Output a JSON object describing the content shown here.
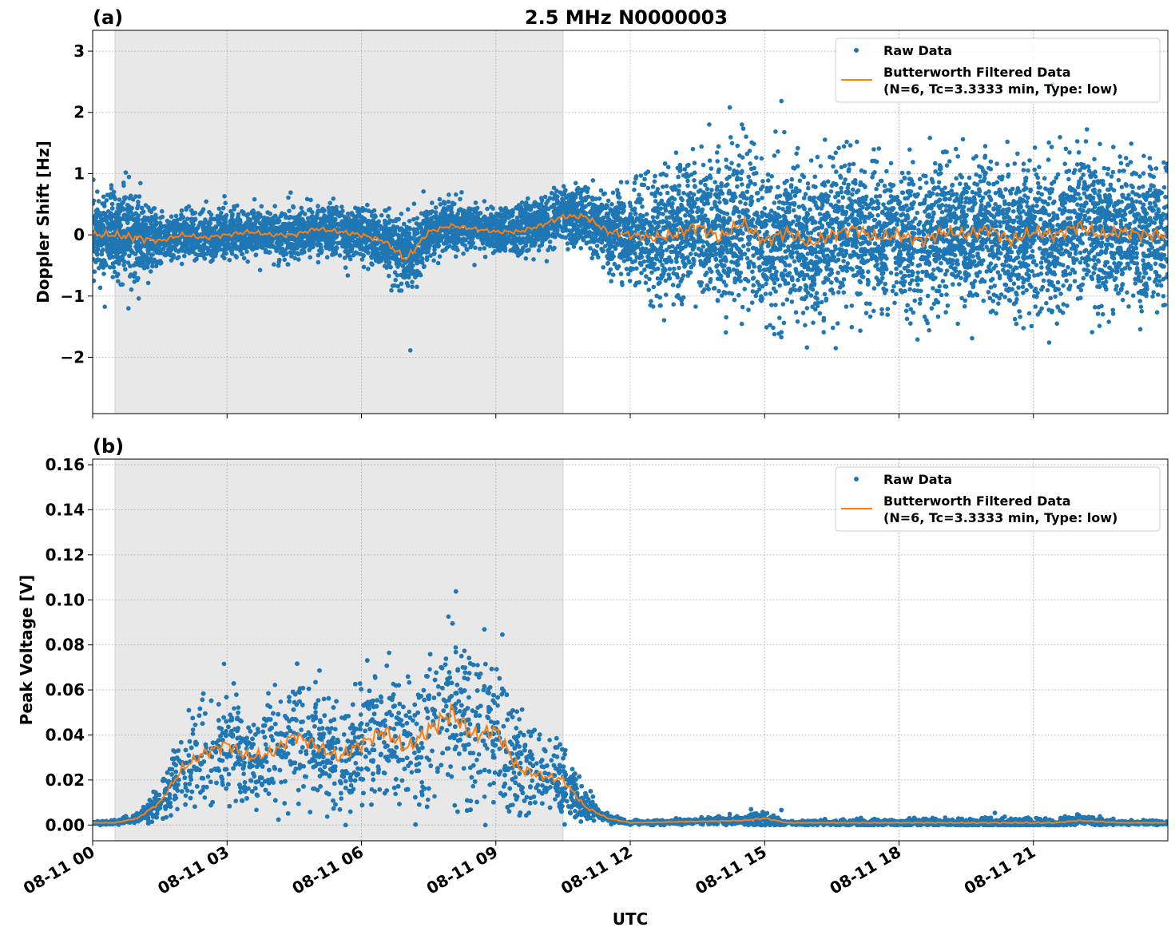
{
  "chart_data": [
    {
      "type": "scatter+line",
      "panel_label": "(a)",
      "title": "2.5 MHz N0000003",
      "xlabel": "",
      "ylabel": "Doppler Shift [Hz]",
      "xlim_hours": [
        0,
        24
      ],
      "ylim": [
        -2.92,
        3.34
      ],
      "yticks": [
        -2,
        -1,
        0,
        1,
        2,
        3
      ],
      "ytick_labels": [
        "−2",
        "−1",
        "0",
        "1",
        "2",
        "3"
      ],
      "grid": true,
      "legend_position": "top-right",
      "shaded_interval_hours": [
        0.5,
        10.5
      ],
      "series": [
        {
          "name": "Raw Data",
          "kind": "scatter",
          "color": "#1f77b4",
          "x_hours": [
            0,
            1,
            1.5,
            3,
            5,
            6.5,
            7,
            7.5,
            9,
            10.5,
            11.5,
            12.5,
            13,
            15,
            18,
            21,
            24
          ],
          "spread_hz": [
            0.6,
            0.65,
            0.35,
            0.35,
            0.35,
            0.4,
            0.65,
            0.35,
            0.3,
            0.4,
            0.5,
            0.8,
            1.0,
            1.05,
            1.0,
            1.05,
            1.0
          ]
        },
        {
          "name": "Butterworth Filtered Data\n(N=6, Tc=3.3333 min, Type: low)",
          "kind": "line",
          "color": "#ff7f0e",
          "x_hours": [
            0,
            0.5,
            1,
            1.5,
            2,
            2.5,
            3,
            3.5,
            4,
            4.5,
            5,
            5.5,
            6,
            6.5,
            7,
            7.5,
            8,
            8.5,
            9,
            9.5,
            10,
            10.5,
            11,
            11.5,
            12,
            12.5,
            13,
            13.5,
            14,
            14.5,
            15,
            15.5,
            16,
            16.5,
            17,
            17.5,
            18,
            18.5,
            19,
            19.5,
            20,
            20.5,
            21,
            21.5,
            22,
            22.5,
            23,
            23.5,
            24
          ],
          "y": [
            0.0,
            0.0,
            -0.05,
            -0.1,
            0.0,
            -0.05,
            0.0,
            0.05,
            0.0,
            0.0,
            0.1,
            0.05,
            0.0,
            -0.1,
            -0.4,
            0.05,
            0.15,
            0.1,
            0.05,
            0.05,
            0.15,
            0.3,
            0.3,
            0.05,
            0.0,
            -0.05,
            0.0,
            0.15,
            -0.05,
            0.2,
            -0.1,
            0.05,
            -0.15,
            0.0,
            0.1,
            -0.05,
            0.0,
            -0.1,
            0.05,
            0.0,
            0.1,
            -0.1,
            0.05,
            0.0,
            0.15,
            0.0,
            0.05,
            0.0,
            0.0
          ]
        }
      ]
    },
    {
      "type": "scatter+line",
      "panel_label": "(b)",
      "xlabel": "UTC",
      "ylabel": "Peak Voltage [V]",
      "xlim_hours": [
        0,
        24
      ],
      "ylim": [
        -0.007,
        0.1625
      ],
      "yticks": [
        0,
        0.02,
        0.04,
        0.06,
        0.08,
        0.1,
        0.12,
        0.14,
        0.16
      ],
      "ytick_labels": [
        "0.00",
        "0.02",
        "0.04",
        "0.06",
        "0.08",
        "0.10",
        "0.12",
        "0.14",
        "0.16"
      ],
      "xticks_hours": [
        0,
        3,
        6,
        9,
        12,
        15,
        18,
        21
      ],
      "xtick_labels": [
        "08-11 00",
        "08-11 03",
        "08-11 06",
        "08-11 09",
        "08-11 12",
        "08-11 15",
        "08-11 18",
        "08-11 21"
      ],
      "grid": true,
      "legend_position": "top-right",
      "shaded_interval_hours": [
        0.5,
        10.5
      ],
      "series": [
        {
          "name": "Raw Data",
          "kind": "scatter",
          "color": "#1f77b4",
          "x_hours": [
            0,
            0.5,
            1,
            1.5,
            2,
            2.5,
            3,
            3.5,
            4,
            4.5,
            5,
            5.5,
            6,
            6.5,
            7,
            7.5,
            8,
            8.5,
            9,
            9.5,
            10,
            10.5,
            11,
            11.5,
            12,
            14.5,
            15,
            15.5,
            21.5,
            22.5,
            23,
            24
          ],
          "spread_v": [
            0.001,
            0.001,
            0.002,
            0.008,
            0.02,
            0.025,
            0.028,
            0.025,
            0.026,
            0.03,
            0.03,
            0.027,
            0.032,
            0.035,
            0.03,
            0.04,
            0.045,
            0.038,
            0.035,
            0.025,
            0.02,
            0.018,
            0.007,
            0.002,
            0.001,
            0.002,
            0.004,
            0.001,
            0.003,
            0.002,
            0.001,
            0.001
          ]
        },
        {
          "name": "Butterworth Filtered Data\n(N=6, Tc=3.3333 min, Type: low)",
          "kind": "line",
          "color": "#ff7f0e",
          "x_hours": [
            0,
            0.5,
            1,
            1.5,
            2,
            2.5,
            3,
            3.5,
            4,
            4.5,
            5,
            5.5,
            6,
            6.5,
            7,
            7.5,
            8,
            8.5,
            9,
            9.5,
            10,
            10.5,
            11,
            11.5,
            12,
            14.5,
            15,
            15.5,
            21.5,
            22,
            23,
            24
          ],
          "y": [
            0.001,
            0.001,
            0.003,
            0.01,
            0.025,
            0.032,
            0.036,
            0.03,
            0.032,
            0.04,
            0.035,
            0.03,
            0.036,
            0.042,
            0.034,
            0.042,
            0.05,
            0.04,
            0.042,
            0.025,
            0.022,
            0.02,
            0.008,
            0.003,
            0.001,
            0.002,
            0.003,
            0.001,
            0.001,
            0.002,
            0.001,
            0.001
          ]
        }
      ]
    }
  ]
}
